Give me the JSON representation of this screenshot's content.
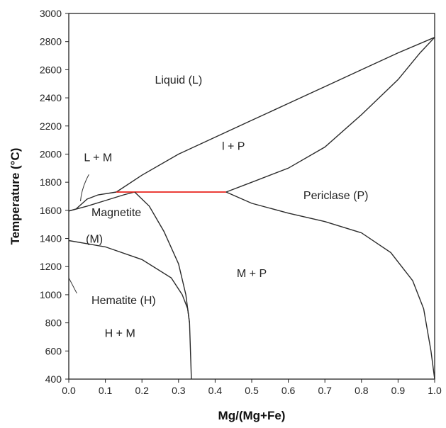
{
  "chart_data": {
    "type": "line",
    "title": "",
    "xlabel": "Mg/(Mg+Fe)",
    "ylabel": "Temperature (°C)",
    "xlim": [
      0.0,
      1.0
    ],
    "ylim": [
      400,
      3000
    ],
    "x_ticks": [
      "0.0",
      "0.1",
      "0.2",
      "0.3",
      "0.4",
      "0.5",
      "0.6",
      "0.7",
      "0.8",
      "0.9",
      "1.0"
    ],
    "y_ticks": [
      "400",
      "600",
      "800",
      "1000",
      "1200",
      "1400",
      "1600",
      "1800",
      "2000",
      "2200",
      "2400",
      "2600",
      "2800",
      "3000"
    ],
    "grid": false,
    "legend": "none",
    "colors": {
      "boundary": "#2b2b2b",
      "eutectic": "#e8221b"
    },
    "series": [
      {
        "points": [
          [
            0.13,
            1730
          ],
          [
            0.2,
            1850
          ],
          [
            0.3,
            2000
          ],
          [
            0.4,
            2120
          ],
          [
            0.5,
            2240
          ],
          [
            0.6,
            2360
          ],
          [
            0.7,
            2480
          ],
          [
            0.8,
            2600
          ],
          [
            0.9,
            2720
          ],
          [
            1.0,
            2830
          ]
        ]
      },
      {
        "points": [
          [
            0.43,
            1730
          ],
          [
            0.5,
            1800
          ],
          [
            0.6,
            1900
          ],
          [
            0.7,
            2050
          ],
          [
            0.8,
            2280
          ],
          [
            0.9,
            2530
          ],
          [
            0.96,
            2720
          ],
          [
            1.0,
            2830
          ]
        ]
      },
      {
        "points": [
          [
            0.0,
            1595
          ],
          [
            0.02,
            1610
          ],
          [
            0.05,
            1680
          ],
          [
            0.08,
            1710
          ],
          [
            0.13,
            1730
          ]
        ]
      },
      {
        "points": [
          [
            0.0,
            1595
          ],
          [
            0.05,
            1630
          ],
          [
            0.1,
            1670
          ],
          [
            0.15,
            1710
          ],
          [
            0.18,
            1730
          ]
        ]
      },
      {
        "points": [
          [
            0.13,
            1730
          ],
          [
            0.43,
            1730
          ]
        ]
      },
      {
        "points": [
          [
            0.18,
            1730
          ],
          [
            0.22,
            1630
          ],
          [
            0.26,
            1450
          ],
          [
            0.3,
            1220
          ],
          [
            0.32,
            1000
          ],
          [
            0.33,
            800
          ],
          [
            0.335,
            400
          ]
        ]
      },
      {
        "points": [
          [
            0.43,
            1730
          ],
          [
            0.5,
            1650
          ],
          [
            0.6,
            1580
          ],
          [
            0.7,
            1520
          ],
          [
            0.8,
            1440
          ],
          [
            0.88,
            1300
          ],
          [
            0.94,
            1100
          ],
          [
            0.97,
            900
          ],
          [
            0.99,
            600
          ],
          [
            1.0,
            400
          ]
        ]
      },
      {
        "points": [
          [
            0.0,
            1385
          ],
          [
            0.1,
            1340
          ],
          [
            0.2,
            1250
          ],
          [
            0.28,
            1120
          ],
          [
            0.31,
            1000
          ],
          [
            0.325,
            900
          ],
          [
            0.33,
            800
          ]
        ]
      }
    ],
    "annotations": [
      {
        "text": "Liquid (L)",
        "x": 0.3,
        "y": 2500
      },
      {
        "text": "L + M",
        "x": 0.08,
        "y": 1950
      },
      {
        "text": "l + P",
        "x": 0.45,
        "y": 2030
      },
      {
        "text": "Periclase (P)",
        "x": 0.73,
        "y": 1680
      },
      {
        "text": "Magnetite",
        "x": 0.13,
        "y": 1560
      },
      {
        "text": "(M)",
        "x": 0.07,
        "y": 1370
      },
      {
        "text": "M + P",
        "x": 0.5,
        "y": 1125
      },
      {
        "text": "Hematite (H)",
        "x": 0.15,
        "y": 935
      },
      {
        "text": "H + M",
        "x": 0.14,
        "y": 700
      }
    ]
  }
}
